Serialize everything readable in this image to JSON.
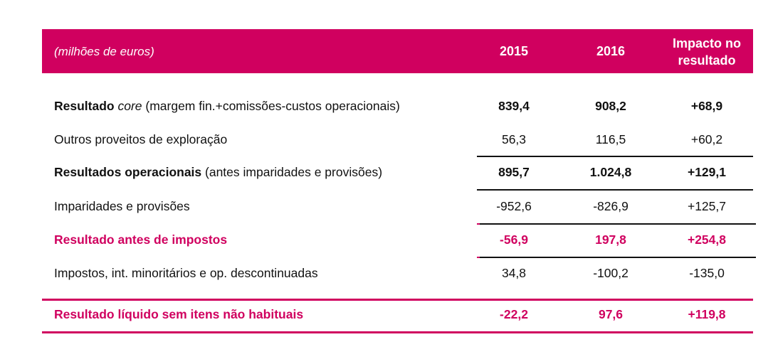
{
  "header": {
    "unit": "(milhões de euros)",
    "col_2015": "2015",
    "col_2016": "2016",
    "col_impact": "Impacto no resultado"
  },
  "accent_color": "#d0005f",
  "rows": [
    {
      "label_bold": "Resultado ",
      "label_italic": "core",
      "label_rest": " (margem fin.+comissões-custos operacionais)",
      "v2015": "839,4",
      "v2016": "908,2",
      "impact": "+68,9"
    },
    {
      "label": "Outros proveitos de exploração",
      "v2015": "56,3",
      "v2016": "116,5",
      "impact": "+60,2"
    },
    {
      "label_bold": "Resultados operacionais",
      "label_rest": " (antes imparidades e provisões)",
      "v2015": "895,7",
      "v2016": "1.024,8",
      "impact": "+129,1"
    },
    {
      "label": "Imparidades e provisões",
      "v2015": "-952,6",
      "v2016": "-826,9",
      "impact": "+125,7"
    },
    {
      "label": "Resultado antes de impostos",
      "v2015": "-56,9",
      "v2016": "197,8",
      "impact": "+254,8"
    },
    {
      "label": "Impostos, int. minoritários e op. descontinuadas",
      "v2015": "34,8",
      "v2016": "-100,2",
      "impact": "-135,0"
    },
    {
      "label": "Resultado líquido sem itens não habituais",
      "v2015": "-22,2",
      "v2016": "97,6",
      "impact": "+119,8"
    }
  ]
}
